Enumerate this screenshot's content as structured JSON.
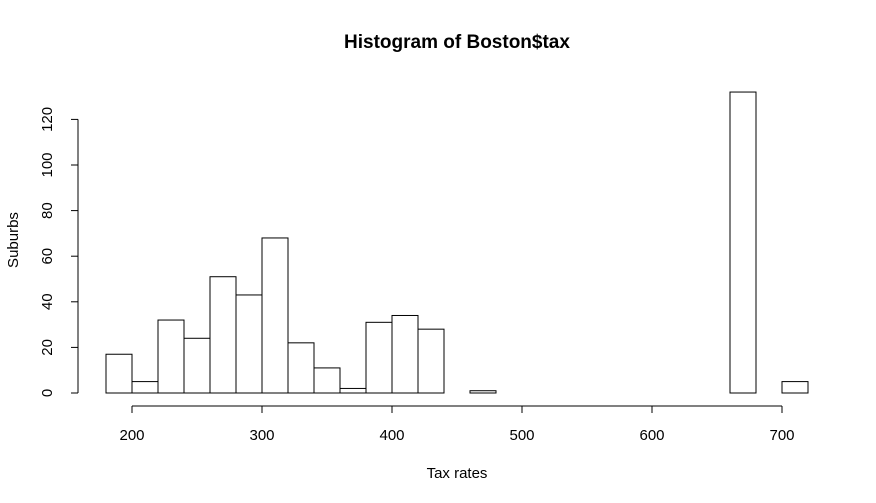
{
  "chart_data": {
    "type": "bar",
    "title": "Histogram of Boston$tax",
    "xlabel": "Tax rates",
    "ylabel": "Suburbs",
    "bin_width": 20,
    "bins": [
      {
        "start": 180,
        "end": 200,
        "count": 17
      },
      {
        "start": 200,
        "end": 220,
        "count": 5
      },
      {
        "start": 220,
        "end": 240,
        "count": 32
      },
      {
        "start": 240,
        "end": 260,
        "count": 24
      },
      {
        "start": 260,
        "end": 280,
        "count": 51
      },
      {
        "start": 280,
        "end": 300,
        "count": 43
      },
      {
        "start": 300,
        "end": 320,
        "count": 68
      },
      {
        "start": 320,
        "end": 340,
        "count": 22
      },
      {
        "start": 340,
        "end": 360,
        "count": 11
      },
      {
        "start": 360,
        "end": 380,
        "count": 2
      },
      {
        "start": 380,
        "end": 400,
        "count": 31
      },
      {
        "start": 400,
        "end": 420,
        "count": 34
      },
      {
        "start": 420,
        "end": 440,
        "count": 28
      },
      {
        "start": 440,
        "end": 460,
        "count": 0
      },
      {
        "start": 460,
        "end": 480,
        "count": 1
      },
      {
        "start": 480,
        "end": 500,
        "count": 0
      },
      {
        "start": 500,
        "end": 520,
        "count": 0
      },
      {
        "start": 520,
        "end": 540,
        "count": 0
      },
      {
        "start": 540,
        "end": 560,
        "count": 0
      },
      {
        "start": 560,
        "end": 580,
        "count": 0
      },
      {
        "start": 580,
        "end": 600,
        "count": 0
      },
      {
        "start": 600,
        "end": 620,
        "count": 0
      },
      {
        "start": 620,
        "end": 640,
        "count": 0
      },
      {
        "start": 640,
        "end": 660,
        "count": 0
      },
      {
        "start": 660,
        "end": 680,
        "count": 132
      },
      {
        "start": 680,
        "end": 700,
        "count": 0
      },
      {
        "start": 700,
        "end": 720,
        "count": 5
      }
    ],
    "xticks": [
      "200",
      "300",
      "400",
      "500",
      "600",
      "700"
    ],
    "yticks": [
      "0",
      "20",
      "40",
      "60",
      "80",
      "100",
      "120"
    ],
    "xlim": [
      180,
      720
    ],
    "ylim": [
      0,
      132
    ],
    "grid": false,
    "bar_fill": "#ffffff",
    "bar_stroke": "#000000"
  }
}
